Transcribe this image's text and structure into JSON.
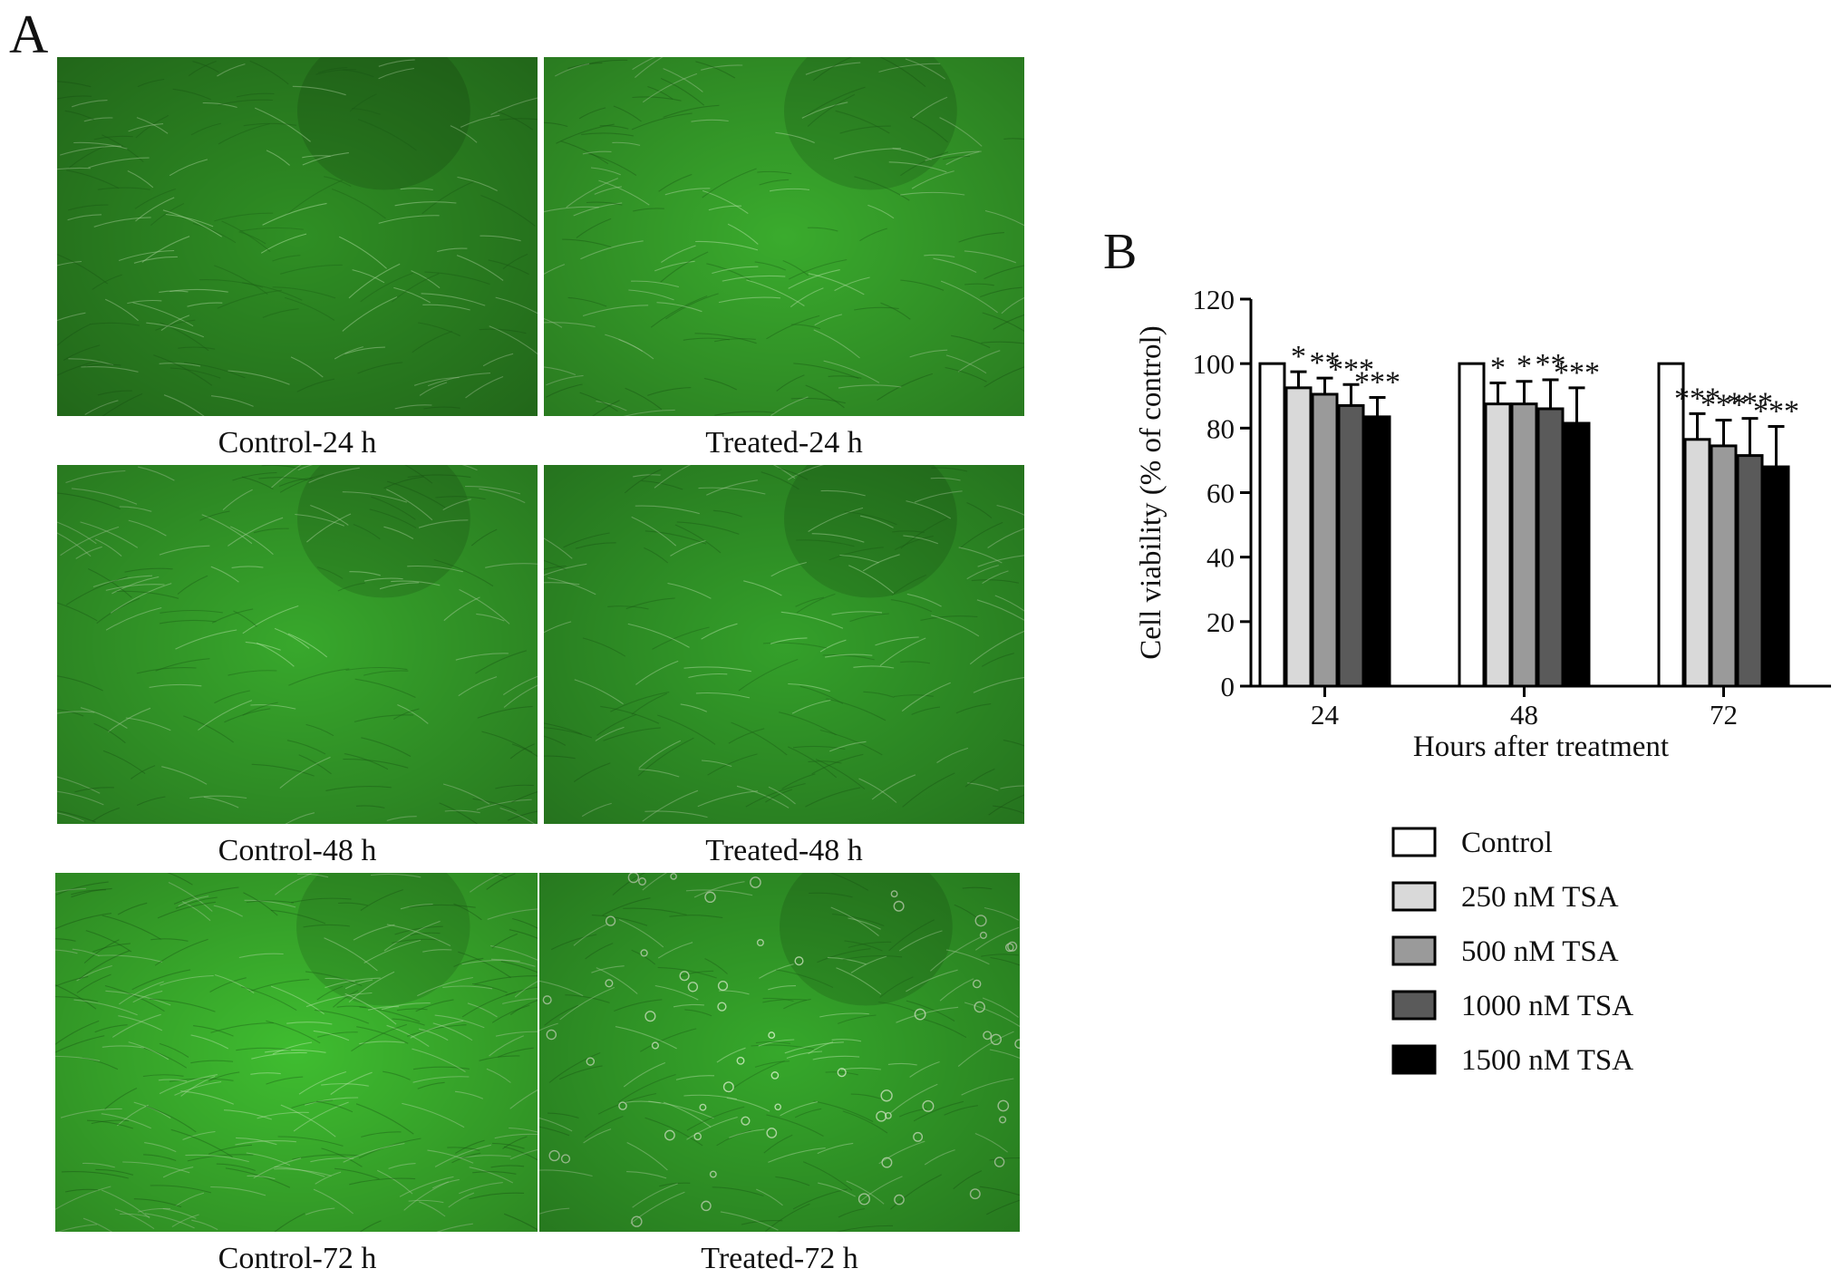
{
  "panel_a": {
    "letter": "A",
    "images": [
      {
        "caption": "Control-24 h",
        "tint": "#2f8f24"
      },
      {
        "caption": "Treated-24 h",
        "tint": "#3aab2d"
      },
      {
        "caption": "Control-48 h",
        "tint": "#38a82c"
      },
      {
        "caption": "Treated-48 h",
        "tint": "#34a02a"
      },
      {
        "caption": "Control-72 h",
        "tint": "#3fbd30"
      },
      {
        "caption": "Treated-72 h",
        "tint": "#36a82b"
      }
    ]
  },
  "chart_data": {
    "type": "bar",
    "panel_letter": "B",
    "xlabel": "Hours after treatment",
    "ylabel": "Cell viability (% of control)",
    "ylim": [
      0,
      120
    ],
    "yticks": [
      0,
      20,
      40,
      60,
      80,
      100,
      120
    ],
    "categories": [
      "24",
      "48",
      "72"
    ],
    "legend_position": "below",
    "grid": false,
    "series": [
      {
        "name": "Control",
        "color": "#ffffff",
        "values": [
          100,
          100,
          100
        ],
        "errors": [
          0,
          0,
          0
        ],
        "stars": [
          "",
          "",
          ""
        ]
      },
      {
        "name": "250 nM TSA",
        "color": "#d9d9d9",
        "values": [
          92.5,
          87.5,
          76.5
        ],
        "errors": [
          5,
          6.5,
          8
        ],
        "stars": [
          "*",
          "*",
          "***"
        ]
      },
      {
        "name": "500 nM TSA",
        "color": "#9a9a9a",
        "values": [
          90.5,
          87.5,
          74.5
        ],
        "errors": [
          5,
          7,
          8
        ],
        "stars": [
          "**",
          "*",
          "***"
        ]
      },
      {
        "name": "1000 nM TSA",
        "color": "#5a5a5a",
        "values": [
          87,
          86,
          71.5
        ],
        "errors": [
          6.5,
          9,
          11.5
        ],
        "stars": [
          "***",
          "**",
          "***"
        ]
      },
      {
        "name": "1500 nM TSA",
        "color": "#000000",
        "values": [
          83.5,
          81.5,
          68
        ],
        "errors": [
          6,
          11,
          12.5
        ],
        "stars": [
          "***",
          "***",
          "***"
        ]
      }
    ]
  }
}
